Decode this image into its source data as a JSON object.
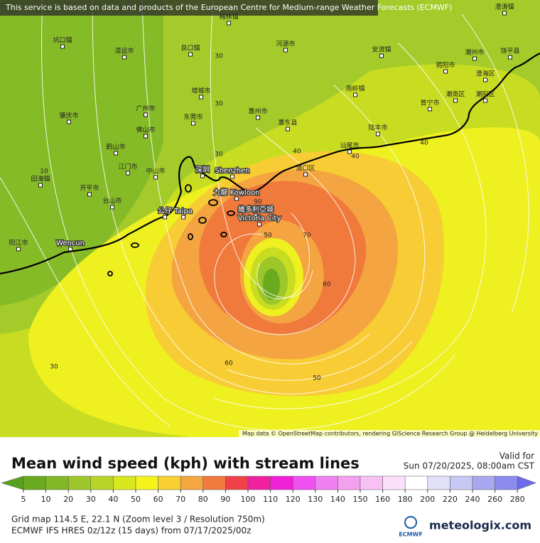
{
  "notice": "This service is based on data and products of the European Centre for Medium-range Weather Forecasts (ECMWF)",
  "places": [
    "梅林镇",
    "澄涛镇",
    "坑口镇",
    "清远市",
    "良口镇",
    "河源市",
    "安流镇",
    "潮州市",
    "饶平县",
    "揭阳市",
    "澄海区",
    "南岭镇",
    "增城市",
    "广州市",
    "肇庆市",
    "佛山市",
    "东莞市",
    "惠州市",
    "惠东县",
    "普宁市",
    "潮南区",
    "潮阳区",
    "陆丰市",
    "鹤山市",
    "江门市",
    "中山市",
    "深圳",
    "Shenzhen",
    "澳口区",
    "汕尾市",
    "开平市",
    "台山市",
    "田海镇",
    "九龍 Kowloon",
    "維多利亞城",
    "Victoria City",
    "公仔",
    "Taipa",
    "阳江市",
    "Wencun"
  ],
  "contour_labels": [
    "30",
    "30",
    "30",
    "10",
    "40",
    "40",
    "40",
    "90",
    "50",
    "70",
    "60",
    "60",
    "50",
    "30"
  ],
  "attribution": "Map data © OpenStreetMap contributors, rendering GIScience Research Group @ Heidelberg University",
  "title": "Mean wind speed (kph) with stream lines",
  "valid_label": "Valid for",
  "valid_time": "Sun 07/20/2025, 08:00am CST",
  "colorbar": {
    "ticks": [
      5,
      10,
      20,
      30,
      40,
      50,
      60,
      70,
      80,
      90,
      100,
      110,
      120,
      130,
      140,
      150,
      160,
      180,
      200,
      220,
      240,
      260,
      280
    ],
    "colors": [
      "#56a01e",
      "#6aaa1e",
      "#82b828",
      "#9cc62a",
      "#b8d428",
      "#d8e81e",
      "#f4f41c",
      "#f8d030",
      "#f4a640",
      "#f07a3c",
      "#f04048",
      "#f020a0",
      "#f020d8",
      "#f050f0",
      "#f080f0",
      "#f4a0f0",
      "#f8c0f4",
      "#fce0fa",
      "#ffffff",
      "#e0e0f8",
      "#c8c8f4",
      "#a8a8f0",
      "#8c8cee",
      "#6c6cea"
    ]
  },
  "footer": {
    "grid": "Grid map 114.5 E, 22.1 N (Zoom level 3 / Resolution 750m)",
    "model": "ECMWF IFS HRES 0z/12z (15 days)  from  07/17/2025/00z"
  },
  "logos": {
    "ecmwf": "ECMWF",
    "meteologix": "meteologix.com"
  }
}
